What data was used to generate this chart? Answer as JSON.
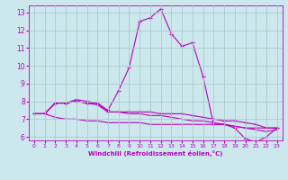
{
  "xlabel": "Windchill (Refroidissement éolien,°C)",
  "bg_color": "#cce8ec",
  "grid_color": "#aacccc",
  "line_color": "#bb00bb",
  "xlim": [
    -0.5,
    23.5
  ],
  "ylim": [
    5.8,
    13.4
  ],
  "xticks": [
    0,
    1,
    2,
    3,
    4,
    5,
    6,
    7,
    8,
    9,
    10,
    11,
    12,
    13,
    14,
    15,
    16,
    17,
    18,
    19,
    20,
    21,
    22,
    23
  ],
  "yticks": [
    6,
    7,
    8,
    9,
    10,
    11,
    12,
    13
  ],
  "series": [
    {
      "x": [
        0,
        1,
        2,
        3,
        4,
        5,
        6,
        7,
        8,
        9,
        10,
        11,
        12,
        13,
        14,
        15,
        16,
        17,
        18,
        19,
        20,
        21,
        22,
        23
      ],
      "y": [
        7.3,
        7.3,
        7.9,
        7.9,
        8.1,
        8.0,
        7.9,
        7.5,
        8.6,
        9.9,
        12.5,
        12.7,
        13.2,
        11.8,
        11.1,
        11.3,
        9.4,
        6.7,
        6.7,
        6.5,
        5.9,
        5.7,
        6.0,
        6.5
      ],
      "marker": true
    },
    {
      "x": [
        0,
        1,
        2,
        3,
        4,
        5,
        6,
        7,
        8,
        9,
        10,
        11,
        12,
        13,
        14,
        15,
        16,
        17,
        18,
        19,
        20,
        21,
        22,
        23
      ],
      "y": [
        7.3,
        7.3,
        7.1,
        7.0,
        7.0,
        6.9,
        6.9,
        6.8,
        6.8,
        6.8,
        6.8,
        6.7,
        6.7,
        6.7,
        6.7,
        6.7,
        6.7,
        6.7,
        6.7,
        6.6,
        6.5,
        6.5,
        6.5,
        6.5
      ],
      "marker": false
    },
    {
      "x": [
        0,
        1,
        2,
        3,
        4,
        5,
        6,
        7,
        8,
        9,
        10,
        11,
        12,
        13,
        14,
        15,
        16,
        17,
        18,
        19,
        20,
        21,
        22,
        23
      ],
      "y": [
        7.3,
        7.3,
        7.9,
        7.9,
        8.0,
        7.9,
        7.9,
        7.4,
        7.4,
        7.4,
        7.4,
        7.4,
        7.3,
        7.3,
        7.3,
        7.2,
        7.1,
        7.0,
        6.9,
        6.9,
        6.8,
        6.7,
        6.5,
        6.5
      ],
      "marker": true
    },
    {
      "x": [
        0,
        1,
        2,
        3,
        4,
        5,
        6,
        7,
        8,
        9,
        10,
        11,
        12,
        13,
        14,
        15,
        16,
        17,
        18,
        19,
        20,
        21,
        22,
        23
      ],
      "y": [
        7.3,
        7.3,
        7.9,
        7.9,
        8.0,
        7.9,
        7.8,
        7.4,
        7.4,
        7.3,
        7.3,
        7.2,
        7.2,
        7.1,
        7.0,
        6.9,
        6.9,
        6.8,
        6.7,
        6.6,
        6.5,
        6.4,
        6.3,
        6.4
      ],
      "marker": false
    }
  ]
}
